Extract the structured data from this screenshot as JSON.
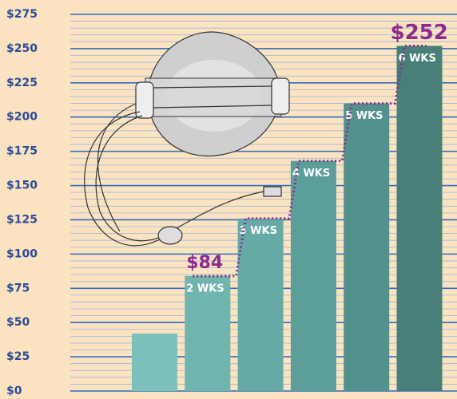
{
  "chart_data": {
    "type": "bar",
    "categories": [
      null,
      "2 WKS",
      "3 WKS",
      "4 WKS",
      "5 WKS",
      "6 WKS"
    ],
    "values": [
      42,
      84,
      126,
      168,
      210,
      252
    ],
    "value_labels": [
      null,
      "$84",
      null,
      null,
      null,
      "$252"
    ],
    "colors": [
      "#7cc0bb",
      "#70b4ae",
      "#66aaa5",
      "#5c9f9a",
      "#52918c",
      "#487f79"
    ],
    "ylim": [
      0,
      275
    ],
    "yticks": [
      {
        "value": 0,
        "label": "$0"
      },
      {
        "value": 25,
        "label": "$25"
      },
      {
        "value": 50,
        "label": "$50"
      },
      {
        "value": 75,
        "label": "$75"
      },
      {
        "value": 100,
        "label": "$100"
      },
      {
        "value": 125,
        "label": "$125"
      },
      {
        "value": 150,
        "label": "$150"
      },
      {
        "value": 175,
        "label": "$175"
      },
      {
        "value": 200,
        "label": "$200"
      },
      {
        "value": 225,
        "label": "$225"
      },
      {
        "value": 250,
        "label": "$250"
      },
      {
        "value": 275,
        "label": "$275"
      }
    ],
    "grid": true
  }
}
